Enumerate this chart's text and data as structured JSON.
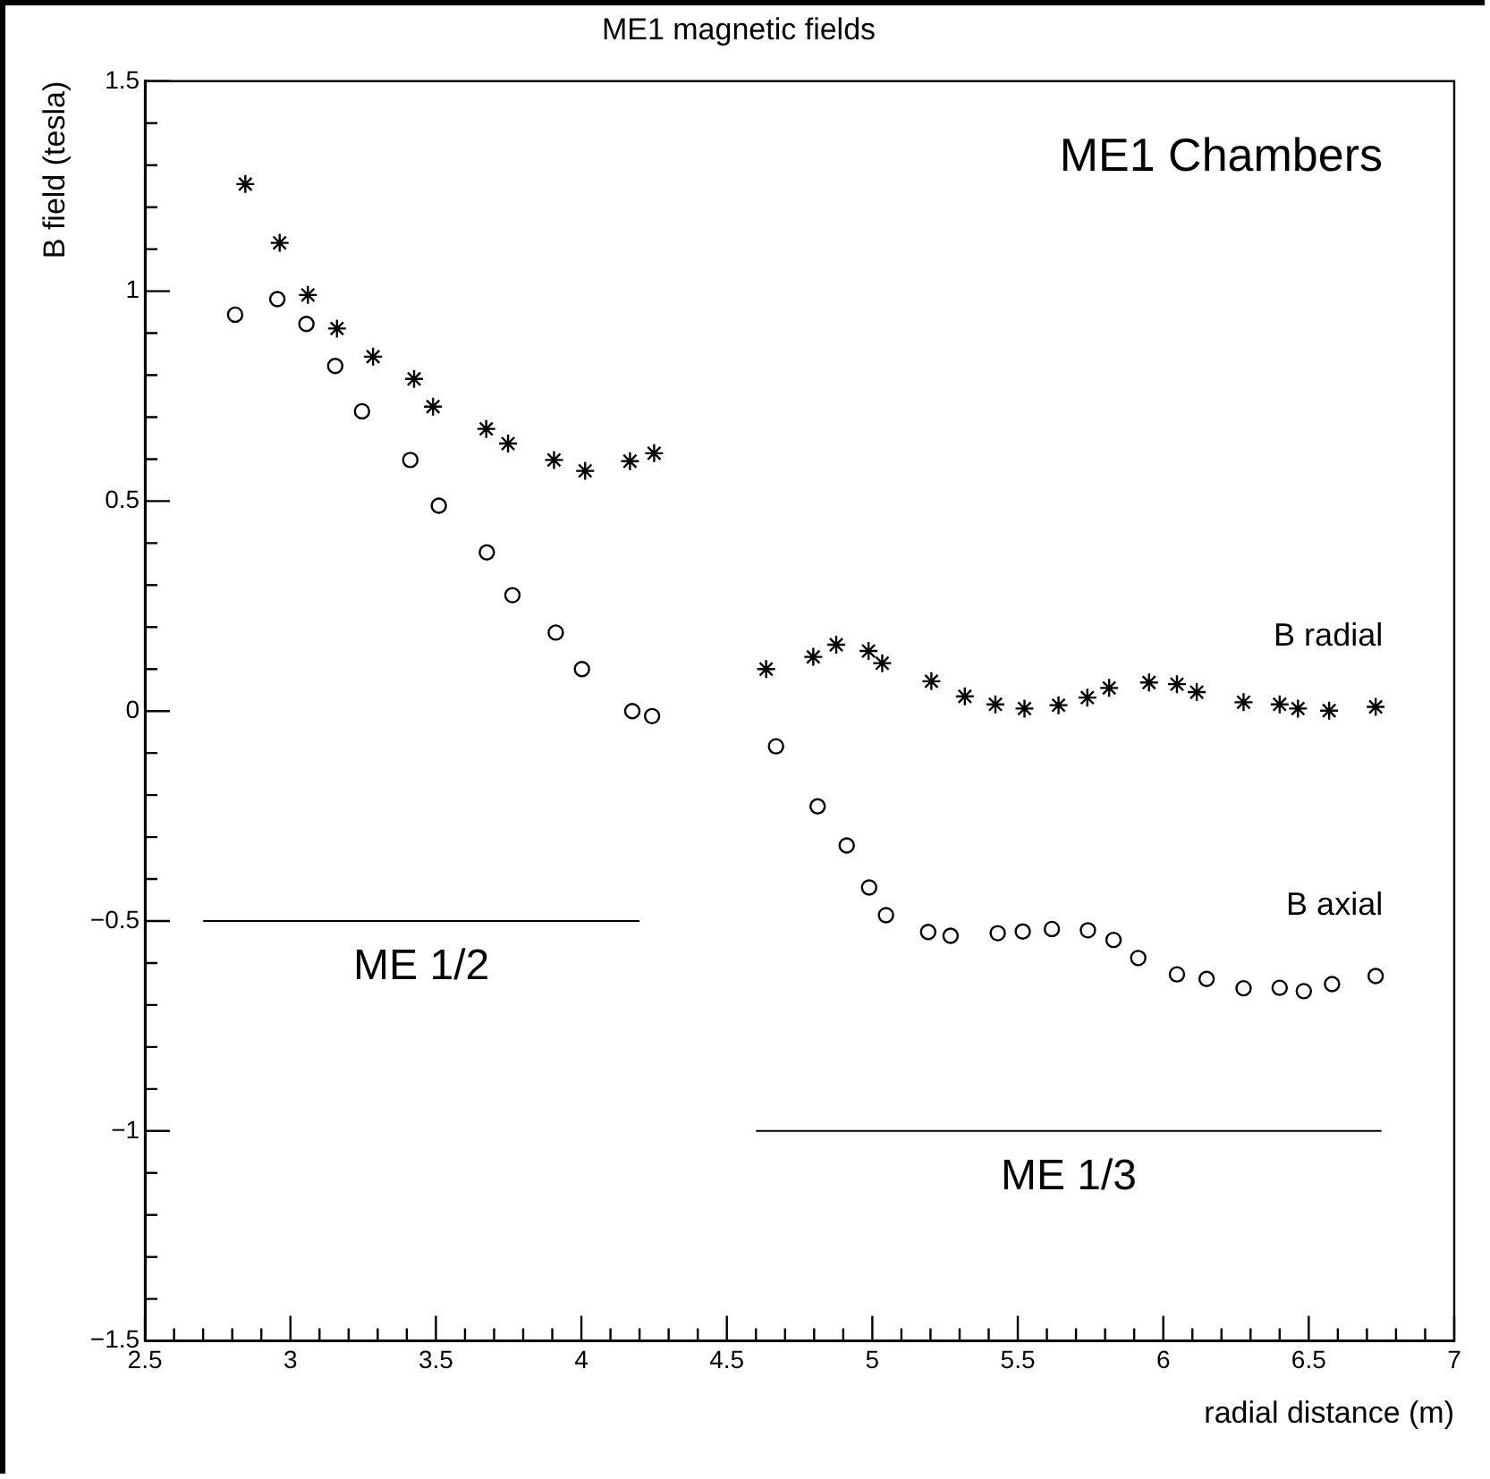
{
  "chart_data": {
    "type": "scatter",
    "title": "ME1 magnetic fields",
    "xlabel": "radial distance (m)",
    "ylabel": "B field (tesla)",
    "xlim": [
      2.5,
      7
    ],
    "ylim": [
      -1.5,
      1.5
    ],
    "xticks": [
      2.5,
      {
        "value": 2.6,
        "label": null
      },
      {
        "value": 2.7,
        "label": null
      },
      {
        "value": 2.8,
        "label": null
      },
      {
        "value": 2.9,
        "label": null
      },
      3,
      {
        "value": 3.1,
        "label": null
      },
      {
        "value": 3.2,
        "label": null
      },
      {
        "value": 3.3,
        "label": null
      },
      {
        "value": 3.4,
        "label": null
      },
      3.5,
      {
        "value": 3.6,
        "label": null
      },
      {
        "value": 3.7,
        "label": null
      },
      {
        "value": 3.8,
        "label": null
      },
      {
        "value": 3.9,
        "label": null
      },
      4,
      {
        "value": 4.1,
        "label": null
      },
      {
        "value": 4.2,
        "label": null
      },
      {
        "value": 4.3,
        "label": null
      },
      {
        "value": 4.4,
        "label": null
      },
      4.5,
      {
        "value": 4.6,
        "label": null
      },
      {
        "value": 4.7,
        "label": null
      },
      {
        "value": 4.8,
        "label": null
      },
      {
        "value": 4.9,
        "label": null
      },
      5,
      {
        "value": 5.1,
        "label": null
      },
      {
        "value": 5.2,
        "label": null
      },
      {
        "value": 5.3,
        "label": null
      },
      {
        "value": 5.4,
        "label": null
      },
      5.5,
      {
        "value": 5.6,
        "label": null
      },
      {
        "value": 5.7,
        "label": null
      },
      {
        "value": 5.8,
        "label": null
      },
      {
        "value": 5.9,
        "label": null
      },
      6,
      {
        "value": 6.1,
        "label": null
      },
      {
        "value": 6.2,
        "label": null
      },
      {
        "value": 6.3,
        "label": null
      },
      {
        "value": 6.4,
        "label": null
      },
      6.5,
      {
        "value": 6.6,
        "label": null
      },
      {
        "value": 6.7,
        "label": null
      },
      {
        "value": 6.8,
        "label": null
      },
      {
        "value": 6.9,
        "label": null
      },
      7
    ],
    "yticks": [
      -1.5,
      {
        "value": -1.4,
        "label": null
      },
      {
        "value": -1.3,
        "label": null
      },
      {
        "value": -1.2,
        "label": null
      },
      {
        "value": -1.1,
        "label": null
      },
      -1,
      {
        "value": -0.9,
        "label": null
      },
      {
        "value": -0.8,
        "label": null
      },
      {
        "value": -0.7,
        "label": null
      },
      {
        "value": -0.6,
        "label": null
      },
      -0.5,
      {
        "value": -0.4,
        "label": null
      },
      {
        "value": -0.3,
        "label": null
      },
      {
        "value": -0.2,
        "label": null
      },
      {
        "value": -0.1,
        "label": null
      },
      0,
      {
        "value": 0.1,
        "label": null
      },
      {
        "value": 0.2,
        "label": null
      },
      {
        "value": 0.3,
        "label": null
      },
      {
        "value": 0.4,
        "label": null
      },
      0.5,
      {
        "value": 0.6,
        "label": null
      },
      {
        "value": 0.7,
        "label": null
      },
      {
        "value": 0.8,
        "label": null
      },
      {
        "value": 0.9,
        "label": null
      },
      1,
      {
        "value": 1.1,
        "label": null
      },
      {
        "value": 1.2,
        "label": null
      },
      {
        "value": 1.3,
        "label": null
      },
      {
        "value": 1.4,
        "label": null
      },
      1.5
    ],
    "grid": false,
    "legend": false,
    "annotations": [
      "ME1 Chambers"
    ],
    "series": [
      {
        "name": "B radial",
        "color": "#000000",
        "marker": "cross",
        "x": [
          2.845,
          2.963,
          3.06,
          3.16,
          3.284,
          3.425,
          3.49,
          3.673,
          3.748,
          3.906,
          4.013,
          4.167,
          4.25,
          4.635,
          4.797,
          4.876,
          4.987,
          5.034,
          5.203,
          5.318,
          5.423,
          5.523,
          5.64,
          5.739,
          5.814,
          5.951,
          6.047,
          6.115,
          6.276,
          6.4,
          6.463,
          6.57,
          6.73
        ],
        "values": [
          1.255,
          1.115,
          0.991,
          0.911,
          0.844,
          0.791,
          0.725,
          0.672,
          0.637,
          0.598,
          0.572,
          0.595,
          0.614,
          0.1,
          0.129,
          0.158,
          0.143,
          0.114,
          0.071,
          0.035,
          0.016,
          0.006,
          0.014,
          0.032,
          0.055,
          0.068,
          0.064,
          0.045,
          0.021,
          0.016,
          0.006,
          0.001,
          0.01
        ]
      },
      {
        "name": "B axial",
        "color": "#000000",
        "marker": "circle",
        "x": [
          2.81,
          2.955,
          3.055,
          3.154,
          3.246,
          3.412,
          3.51,
          3.675,
          3.763,
          3.912,
          4.002,
          4.175,
          4.243,
          4.669,
          4.812,
          4.912,
          4.989,
          5.047,
          5.192,
          5.269,
          5.431,
          5.517,
          5.617,
          5.741,
          5.829,
          5.914,
          6.047,
          6.149,
          6.276,
          6.4,
          6.483,
          6.58,
          6.73
        ],
        "values": [
          0.944,
          0.981,
          0.922,
          0.822,
          0.714,
          0.598,
          0.489,
          0.378,
          0.276,
          0.187,
          0.1,
          0.0,
          -0.012,
          -0.084,
          -0.227,
          -0.32,
          -0.42,
          -0.486,
          -0.526,
          -0.535,
          -0.529,
          -0.525,
          -0.519,
          -0.522,
          -0.545,
          -0.588,
          -0.627,
          -0.638,
          -0.66,
          -0.659,
          -0.667,
          -0.65,
          -0.631
        ]
      },
      {
        "name": "ME 1/2",
        "type": "line",
        "color": "#000000",
        "marker": "none",
        "x": [
          2.7,
          4.2
        ],
        "values": [
          -0.5,
          -0.5
        ]
      },
      {
        "name": "ME 1/3",
        "type": "line",
        "color": "#000000",
        "marker": "none",
        "x": [
          4.6,
          6.75
        ],
        "values": [
          -1,
          -1
        ]
      }
    ]
  }
}
